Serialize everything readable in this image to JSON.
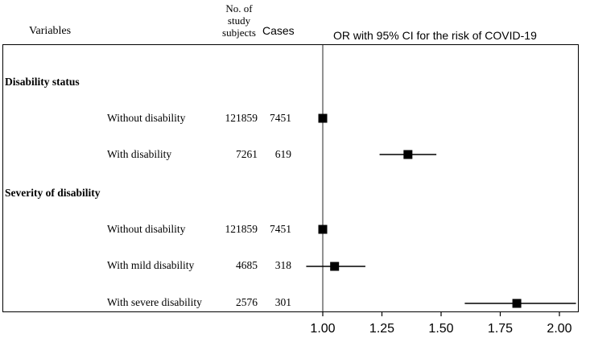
{
  "header": {
    "variables": "Variables",
    "subjects_line1": "No. of",
    "subjects_line2": "study",
    "subjects_line3": "subjects",
    "cases": "Cases",
    "plot_title": "OR with 95% CI for the risk of COVID-19"
  },
  "chart_data": {
    "type": "forest",
    "title": "OR with 95% CI for the risk of COVID-19",
    "reference_line": 1.0,
    "xlim": [
      0.88,
      2.1
    ],
    "xticks": [
      1.0,
      1.25,
      1.5,
      1.75,
      2.0
    ],
    "xtick_labels": [
      "1.00",
      "1.25",
      "1.50",
      "1.75",
      "2.00"
    ],
    "groups": [
      {
        "label": "Disability status",
        "rows": [
          {
            "label": "Without disability",
            "subjects": "121859",
            "cases": "7451",
            "or": 1.0,
            "lo": null,
            "hi": null
          },
          {
            "label": "With disability",
            "subjects": "7261",
            "cases": "619",
            "or": 1.36,
            "lo": 1.24,
            "hi": 1.48
          }
        ]
      },
      {
        "label": "Severity of disability",
        "rows": [
          {
            "label": "Without disability",
            "subjects": "121859",
            "cases": "7451",
            "or": 1.0,
            "lo": null,
            "hi": null
          },
          {
            "label": "With mild disability",
            "subjects": "4685",
            "cases": "318",
            "or": 1.05,
            "lo": 0.93,
            "hi": 1.18
          },
          {
            "label": "With severe disability",
            "subjects": "2576",
            "cases": "301",
            "or": 1.82,
            "lo": 1.6,
            "hi": 2.07
          }
        ]
      }
    ]
  }
}
